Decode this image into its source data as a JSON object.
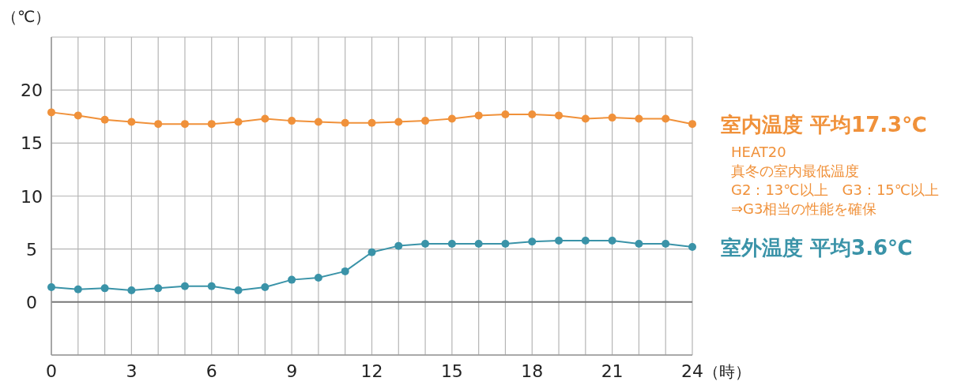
{
  "chart_data": {
    "type": "line",
    "ylabel": "（℃）",
    "xlabel": "（時）",
    "x": [
      0,
      1,
      2,
      3,
      4,
      5,
      6,
      7,
      8,
      9,
      10,
      11,
      12,
      13,
      14,
      15,
      16,
      17,
      18,
      19,
      20,
      21,
      22,
      23,
      24
    ],
    "series": [
      {
        "name": "室内温度 平均17.3℃",
        "color": "#f0913a",
        "values": [
          17.9,
          17.6,
          17.2,
          17.0,
          16.8,
          16.8,
          16.8,
          17.0,
          17.3,
          17.1,
          17.0,
          16.9,
          16.9,
          17.0,
          17.1,
          17.3,
          17.6,
          17.7,
          17.7,
          17.6,
          17.3,
          17.4,
          17.3,
          17.3,
          16.8
        ]
      },
      {
        "name": "室外温度 平均3.6℃",
        "color": "#3a93a8",
        "values": [
          1.4,
          1.2,
          1.3,
          1.1,
          1.3,
          1.5,
          1.5,
          1.1,
          1.4,
          2.1,
          2.3,
          2.9,
          4.7,
          5.3,
          5.5,
          5.5,
          5.5,
          5.5,
          5.7,
          5.8,
          5.8,
          5.8,
          5.5,
          5.5,
          5.2
        ]
      }
    ],
    "annotations": [
      "HEAT20",
      "真冬の室内最低温度",
      "G2：13℃以上　G3：15℃以上",
      "⇒G3相当の性能を確保"
    ],
    "xlim": [
      0,
      24
    ],
    "ylim": [
      -5,
      25
    ],
    "xticks": [
      0,
      {
        "value": 1,
        "label": null
      },
      {
        "value": 2,
        "label": null
      },
      3,
      {
        "value": 4,
        "label": null
      },
      {
        "value": 5,
        "label": null
      },
      6,
      {
        "value": 7,
        "label": null
      },
      {
        "value": 8,
        "label": null
      },
      9,
      {
        "value": 10,
        "label": null
      },
      {
        "value": 11,
        "label": null
      },
      12,
      {
        "value": 13,
        "label": null
      },
      {
        "value": 14,
        "label": null
      },
      15,
      {
        "value": 16,
        "label": null
      },
      {
        "value": 17,
        "label": null
      },
      18,
      {
        "value": 19,
        "label": null
      },
      {
        "value": 20,
        "label": null
      },
      21,
      {
        "value": 22,
        "label": null
      },
      {
        "value": 23,
        "label": null
      },
      24
    ],
    "yticks": [
      {
        "value": -5,
        "label": null
      },
      0,
      5,
      10,
      15,
      20,
      {
        "value": 25,
        "label": null
      }
    ],
    "grid": true,
    "marker": "circle",
    "line_style": "solid"
  }
}
